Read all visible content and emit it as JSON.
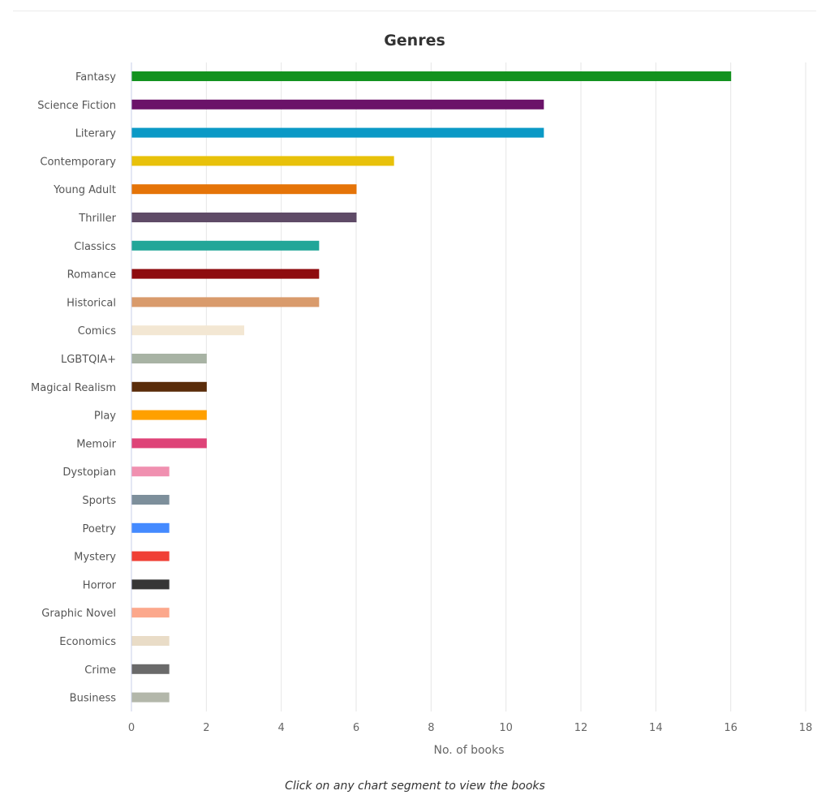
{
  "chart_data": {
    "type": "bar",
    "orientation": "horizontal",
    "title": "Genres",
    "xlabel": "No. of books",
    "ylabel": "",
    "xlim": [
      0,
      18
    ],
    "xticks": [
      "0",
      "2",
      "4",
      "6",
      "8",
      "10",
      "12",
      "14",
      "16",
      "18"
    ],
    "grid": true,
    "categories": [
      "Fantasy",
      "Science Fiction",
      "Literary",
      "Contemporary",
      "Young Adult",
      "Thriller",
      "Classics",
      "Romance",
      "Historical",
      "Comics",
      "LGBTQIA+",
      "Magical Realism",
      "Play",
      "Memoir",
      "Dystopian",
      "Sports",
      "Poetry",
      "Mystery",
      "Horror",
      "Graphic Novel",
      "Economics",
      "Crime",
      "Business"
    ],
    "values": [
      16,
      11,
      11,
      7,
      6,
      6,
      5,
      5,
      5,
      3,
      2,
      2,
      2,
      2,
      1,
      1,
      1,
      1,
      1,
      1,
      1,
      1,
      1
    ],
    "colors": [
      "#13921f",
      "#6b1369",
      "#0b99c6",
      "#e8c10a",
      "#e57408",
      "#5f4b67",
      "#22a698",
      "#8e0b0e",
      "#d99b6c",
      "#f3e7d3",
      "#a8b3a4",
      "#5a2c0a",
      "#ffa000",
      "#de4378",
      "#f090b0",
      "#7d8f9b",
      "#448aff",
      "#f03f35",
      "#363636",
      "#fca88c",
      "#e9dcc7",
      "#6a6a6a",
      "#b3b7aa"
    ]
  },
  "footer": {
    "caption": "Click on any chart segment to view the books"
  }
}
